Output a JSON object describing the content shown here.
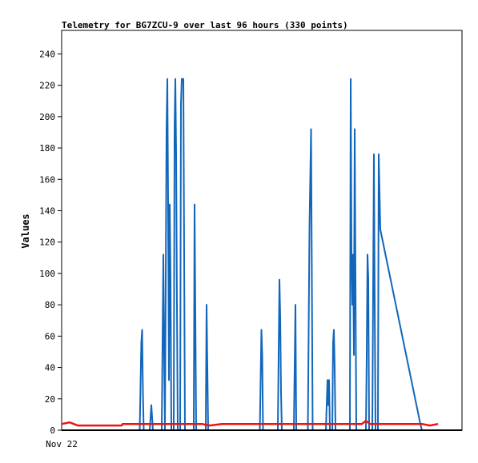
{
  "chart_data": {
    "type": "line",
    "title": "Telemetry for BG7ZCU-9 over last 96 hours (330 points)",
    "xlabel": "",
    "ylabel": "Values",
    "x_ticks": [
      "Nov 22"
    ],
    "y_ticks": [
      0,
      20,
      40,
      60,
      80,
      100,
      120,
      140,
      160,
      180,
      200,
      220,
      240
    ],
    "ylim": [
      0,
      255
    ],
    "xlim": [
      0,
      100
    ],
    "grid": false,
    "legend": "none",
    "series": [
      {
        "color": "#1166bb",
        "points": [
          [
            19.5,
            0
          ],
          [
            19.7,
            28
          ],
          [
            19.9,
            56
          ],
          [
            20.1,
            64
          ],
          [
            20.3,
            24
          ],
          [
            20.5,
            0
          ],
          [
            22.0,
            0
          ],
          [
            22.2,
            8
          ],
          [
            22.4,
            16
          ],
          [
            22.6,
            8
          ],
          [
            22.8,
            0
          ],
          [
            25.0,
            0
          ],
          [
            25.2,
            56
          ],
          [
            25.4,
            112
          ],
          [
            25.6,
            48
          ],
          [
            25.8,
            0
          ],
          [
            26.0,
            96
          ],
          [
            26.2,
            192
          ],
          [
            26.4,
            224
          ],
          [
            26.6,
            144
          ],
          [
            26.8,
            32
          ],
          [
            27.0,
            144
          ],
          [
            27.2,
            96
          ],
          [
            27.4,
            0
          ],
          [
            28.0,
            0
          ],
          [
            28.2,
            192
          ],
          [
            28.4,
            224
          ],
          [
            28.6,
            176
          ],
          [
            28.8,
            80
          ],
          [
            29.0,
            0
          ],
          [
            29.6,
            0
          ],
          [
            29.8,
            208
          ],
          [
            30.0,
            224
          ],
          [
            30.4,
            224
          ],
          [
            30.6,
            112
          ],
          [
            30.8,
            0
          ],
          [
            33.0,
            0
          ],
          [
            33.2,
            144
          ],
          [
            33.4,
            72
          ],
          [
            33.6,
            0
          ],
          [
            36.0,
            0
          ],
          [
            36.2,
            80
          ],
          [
            36.4,
            40
          ],
          [
            36.6,
            0
          ],
          [
            49.5,
            0
          ],
          [
            49.7,
            32
          ],
          [
            49.9,
            64
          ],
          [
            50.1,
            48
          ],
          [
            50.3,
            0
          ],
          [
            54.0,
            0
          ],
          [
            54.2,
            48
          ],
          [
            54.4,
            96
          ],
          [
            54.6,
            72
          ],
          [
            54.8,
            24
          ],
          [
            55.0,
            0
          ],
          [
            58.0,
            0
          ],
          [
            58.2,
            40
          ],
          [
            58.4,
            80
          ],
          [
            58.6,
            0
          ],
          [
            61.5,
            0
          ],
          [
            61.7,
            64
          ],
          [
            61.9,
            128
          ],
          [
            62.1,
            160
          ],
          [
            62.3,
            192
          ],
          [
            62.5,
            96
          ],
          [
            62.7,
            0
          ],
          [
            66.0,
            0
          ],
          [
            66.2,
            16
          ],
          [
            66.4,
            32
          ],
          [
            66.6,
            16
          ],
          [
            66.8,
            32
          ],
          [
            67.0,
            0
          ],
          [
            67.6,
            0
          ],
          [
            67.8,
            56
          ],
          [
            68.0,
            64
          ],
          [
            68.2,
            40
          ],
          [
            68.4,
            0
          ],
          [
            72.0,
            0
          ],
          [
            72.2,
            224
          ],
          [
            72.4,
            112
          ],
          [
            72.6,
            80
          ],
          [
            72.8,
            112
          ],
          [
            73.0,
            48
          ],
          [
            73.2,
            192
          ],
          [
            73.4,
            96
          ],
          [
            73.6,
            0
          ],
          [
            76.0,
            0
          ],
          [
            76.2,
            48
          ],
          [
            76.4,
            112
          ],
          [
            76.6,
            96
          ],
          [
            76.8,
            0
          ],
          [
            77.6,
            0
          ],
          [
            77.8,
            88
          ],
          [
            78.0,
            176
          ],
          [
            78.2,
            80
          ],
          [
            78.4,
            0
          ],
          [
            79.0,
            0
          ],
          [
            79.2,
            176
          ],
          [
            79.4,
            152
          ],
          [
            79.6,
            128
          ],
          [
            89.6,
            4
          ],
          [
            90.0,
            0
          ],
          [
            94.0,
            0
          ]
        ]
      },
      {
        "color": "#ee1111",
        "points": [
          [
            0,
            4
          ],
          [
            2,
            5
          ],
          [
            4,
            3
          ],
          [
            15,
            3
          ],
          [
            15.2,
            4
          ],
          [
            35,
            4
          ],
          [
            37,
            3
          ],
          [
            40,
            4
          ],
          [
            75,
            4
          ],
          [
            76,
            6
          ],
          [
            77,
            4
          ],
          [
            90,
            4
          ],
          [
            92,
            3
          ],
          [
            94,
            4
          ]
        ]
      }
    ]
  }
}
